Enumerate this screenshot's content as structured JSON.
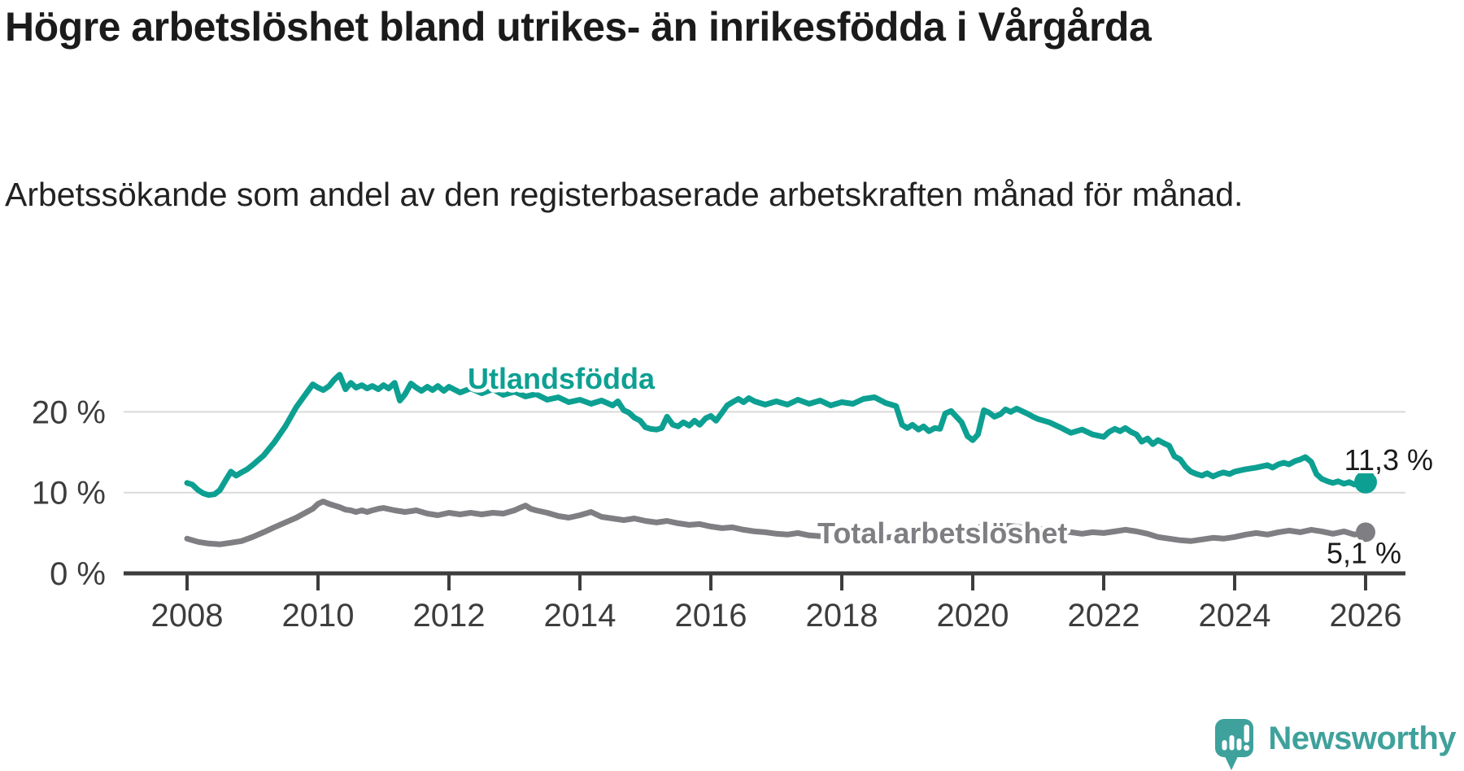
{
  "header": {
    "title": "Högre arbetslöshet bland utrikes- än inrikesfödda i Vårgårda",
    "subtitle": "Arbetssökande som andel av den registerbaserade arbetskraften månad för månad."
  },
  "chart_data": {
    "type": "line",
    "title": "Högre arbetslöshet bland utrikes- än inrikesfödda i Vårgårda",
    "subtitle": "Arbetssökande som andel av den registerbaserade arbetskraften månad för månad.",
    "xlabel": "",
    "ylabel": "",
    "xlim": [
      2007.0,
      2026.6
    ],
    "ylim": [
      0,
      27
    ],
    "grid": "horizontal",
    "legend_position": "inline-labels-on-lines",
    "x_ticks": [
      2008,
      2010,
      2012,
      2014,
      2016,
      2018,
      2020,
      2022,
      2024,
      2026
    ],
    "y_ticks": [
      {
        "value": 0,
        "label": "0 %"
      },
      {
        "value": 10,
        "label": "10 %"
      },
      {
        "value": 20,
        "label": "20 %"
      }
    ],
    "series": [
      {
        "name": "Utlandsfödda",
        "color": "#0da092",
        "end_label": "11,3 %",
        "end_value": 11.3,
        "points": [
          [
            2008.0,
            11.2
          ],
          [
            2008.08,
            11.0
          ],
          [
            2008.17,
            10.3
          ],
          [
            2008.25,
            9.9
          ],
          [
            2008.33,
            9.7
          ],
          [
            2008.42,
            9.8
          ],
          [
            2008.5,
            10.3
          ],
          [
            2008.58,
            11.4
          ],
          [
            2008.67,
            12.6
          ],
          [
            2008.75,
            12.1
          ],
          [
            2008.83,
            12.5
          ],
          [
            2008.92,
            12.9
          ],
          [
            2009.0,
            13.4
          ],
          [
            2009.17,
            14.6
          ],
          [
            2009.25,
            15.4
          ],
          [
            2009.33,
            16.2
          ],
          [
            2009.5,
            18.2
          ],
          [
            2009.67,
            20.6
          ],
          [
            2009.83,
            22.4
          ],
          [
            2009.92,
            23.4
          ],
          [
            2010.0,
            23.0
          ],
          [
            2010.08,
            22.7
          ],
          [
            2010.17,
            23.2
          ],
          [
            2010.25,
            24.0
          ],
          [
            2010.33,
            24.6
          ],
          [
            2010.42,
            22.8
          ],
          [
            2010.5,
            23.6
          ],
          [
            2010.58,
            23.0
          ],
          [
            2010.67,
            23.3
          ],
          [
            2010.75,
            22.9
          ],
          [
            2010.83,
            23.2
          ],
          [
            2010.92,
            22.8
          ],
          [
            2011.0,
            23.3
          ],
          [
            2011.08,
            22.9
          ],
          [
            2011.17,
            23.6
          ],
          [
            2011.25,
            21.4
          ],
          [
            2011.33,
            22.2
          ],
          [
            2011.42,
            23.5
          ],
          [
            2011.5,
            23.0
          ],
          [
            2011.58,
            22.6
          ],
          [
            2011.67,
            23.1
          ],
          [
            2011.75,
            22.7
          ],
          [
            2011.83,
            23.2
          ],
          [
            2011.92,
            22.6
          ],
          [
            2012.0,
            23.1
          ],
          [
            2012.17,
            22.4
          ],
          [
            2012.33,
            22.9
          ],
          [
            2012.5,
            22.3
          ],
          [
            2012.67,
            22.8
          ],
          [
            2012.83,
            22.1
          ],
          [
            2013.0,
            22.5
          ],
          [
            2013.17,
            21.9
          ],
          [
            2013.33,
            22.2
          ],
          [
            2013.5,
            21.5
          ],
          [
            2013.67,
            21.8
          ],
          [
            2013.83,
            21.2
          ],
          [
            2014.0,
            21.5
          ],
          [
            2014.17,
            21.0
          ],
          [
            2014.33,
            21.4
          ],
          [
            2014.5,
            20.8
          ],
          [
            2014.58,
            21.3
          ],
          [
            2014.67,
            20.2
          ],
          [
            2014.75,
            19.9
          ],
          [
            2014.83,
            19.3
          ],
          [
            2014.92,
            18.9
          ],
          [
            2015.0,
            18.1
          ],
          [
            2015.08,
            17.9
          ],
          [
            2015.17,
            17.8
          ],
          [
            2015.25,
            18.0
          ],
          [
            2015.33,
            19.4
          ],
          [
            2015.42,
            18.4
          ],
          [
            2015.5,
            18.2
          ],
          [
            2015.58,
            18.7
          ],
          [
            2015.67,
            18.3
          ],
          [
            2015.75,
            18.9
          ],
          [
            2015.83,
            18.4
          ],
          [
            2015.92,
            19.2
          ],
          [
            2016.0,
            19.5
          ],
          [
            2016.08,
            18.9
          ],
          [
            2016.17,
            19.9
          ],
          [
            2016.25,
            20.8
          ],
          [
            2016.33,
            21.2
          ],
          [
            2016.42,
            21.6
          ],
          [
            2016.5,
            21.2
          ],
          [
            2016.58,
            21.7
          ],
          [
            2016.67,
            21.3
          ],
          [
            2016.83,
            20.9
          ],
          [
            2017.0,
            21.3
          ],
          [
            2017.17,
            20.9
          ],
          [
            2017.33,
            21.5
          ],
          [
            2017.5,
            21.0
          ],
          [
            2017.67,
            21.4
          ],
          [
            2017.83,
            20.8
          ],
          [
            2018.0,
            21.2
          ],
          [
            2018.17,
            21.0
          ],
          [
            2018.33,
            21.6
          ],
          [
            2018.5,
            21.8
          ],
          [
            2018.67,
            21.1
          ],
          [
            2018.83,
            20.7
          ],
          [
            2018.92,
            18.4
          ],
          [
            2019.0,
            18.0
          ],
          [
            2019.08,
            18.4
          ],
          [
            2019.17,
            17.8
          ],
          [
            2019.25,
            18.2
          ],
          [
            2019.33,
            17.6
          ],
          [
            2019.42,
            18.0
          ],
          [
            2019.5,
            17.9
          ],
          [
            2019.58,
            19.8
          ],
          [
            2019.67,
            20.1
          ],
          [
            2019.75,
            19.4
          ],
          [
            2019.83,
            18.7
          ],
          [
            2019.92,
            17.0
          ],
          [
            2020.0,
            16.5
          ],
          [
            2020.08,
            17.2
          ],
          [
            2020.17,
            20.2
          ],
          [
            2020.25,
            19.9
          ],
          [
            2020.33,
            19.4
          ],
          [
            2020.42,
            19.7
          ],
          [
            2020.5,
            20.3
          ],
          [
            2020.58,
            20.0
          ],
          [
            2020.67,
            20.4
          ],
          [
            2020.75,
            20.1
          ],
          [
            2020.83,
            19.8
          ],
          [
            2020.92,
            19.4
          ],
          [
            2021.0,
            19.1
          ],
          [
            2021.17,
            18.7
          ],
          [
            2021.33,
            18.1
          ],
          [
            2021.5,
            17.4
          ],
          [
            2021.67,
            17.8
          ],
          [
            2021.83,
            17.2
          ],
          [
            2022.0,
            16.9
          ],
          [
            2022.08,
            17.5
          ],
          [
            2022.17,
            17.9
          ],
          [
            2022.25,
            17.6
          ],
          [
            2022.33,
            18.0
          ],
          [
            2022.42,
            17.5
          ],
          [
            2022.5,
            17.2
          ],
          [
            2022.58,
            16.3
          ],
          [
            2022.67,
            16.7
          ],
          [
            2022.75,
            16.0
          ],
          [
            2022.83,
            16.5
          ],
          [
            2022.92,
            16.1
          ],
          [
            2023.0,
            15.8
          ],
          [
            2023.08,
            14.5
          ],
          [
            2023.17,
            14.1
          ],
          [
            2023.25,
            13.2
          ],
          [
            2023.33,
            12.6
          ],
          [
            2023.42,
            12.3
          ],
          [
            2023.5,
            12.1
          ],
          [
            2023.58,
            12.4
          ],
          [
            2023.67,
            12.0
          ],
          [
            2023.75,
            12.3
          ],
          [
            2023.83,
            12.5
          ],
          [
            2023.92,
            12.3
          ],
          [
            2024.0,
            12.6
          ],
          [
            2024.17,
            12.9
          ],
          [
            2024.33,
            13.1
          ],
          [
            2024.5,
            13.4
          ],
          [
            2024.58,
            13.1
          ],
          [
            2024.67,
            13.5
          ],
          [
            2024.75,
            13.7
          ],
          [
            2024.83,
            13.5
          ],
          [
            2024.92,
            13.9
          ],
          [
            2025.0,
            14.1
          ],
          [
            2025.08,
            14.4
          ],
          [
            2025.17,
            13.8
          ],
          [
            2025.25,
            12.3
          ],
          [
            2025.33,
            11.7
          ],
          [
            2025.42,
            11.4
          ],
          [
            2025.5,
            11.2
          ],
          [
            2025.58,
            11.4
          ],
          [
            2025.67,
            11.1
          ],
          [
            2025.75,
            11.3
          ],
          [
            2025.83,
            11.0
          ],
          [
            2025.92,
            11.1
          ],
          [
            2026.0,
            11.3
          ]
        ]
      },
      {
        "name": "Total arbetslöshet",
        "color": "#7f7f83",
        "end_label": "5,1 %",
        "end_value": 5.1,
        "points": [
          [
            2008.0,
            4.3
          ],
          [
            2008.17,
            3.9
          ],
          [
            2008.33,
            3.7
          ],
          [
            2008.5,
            3.6
          ],
          [
            2008.67,
            3.8
          ],
          [
            2008.83,
            4.0
          ],
          [
            2009.0,
            4.5
          ],
          [
            2009.17,
            5.1
          ],
          [
            2009.33,
            5.7
          ],
          [
            2009.5,
            6.3
          ],
          [
            2009.67,
            6.9
          ],
          [
            2009.83,
            7.6
          ],
          [
            2009.92,
            8.0
          ],
          [
            2010.0,
            8.6
          ],
          [
            2010.08,
            8.9
          ],
          [
            2010.17,
            8.6
          ],
          [
            2010.25,
            8.4
          ],
          [
            2010.33,
            8.2
          ],
          [
            2010.42,
            7.9
          ],
          [
            2010.5,
            7.8
          ],
          [
            2010.58,
            7.6
          ],
          [
            2010.67,
            7.8
          ],
          [
            2010.75,
            7.6
          ],
          [
            2010.83,
            7.8
          ],
          [
            2010.92,
            8.0
          ],
          [
            2011.0,
            8.1
          ],
          [
            2011.17,
            7.8
          ],
          [
            2011.33,
            7.6
          ],
          [
            2011.5,
            7.8
          ],
          [
            2011.67,
            7.4
          ],
          [
            2011.83,
            7.2
          ],
          [
            2012.0,
            7.5
          ],
          [
            2012.17,
            7.3
          ],
          [
            2012.33,
            7.5
          ],
          [
            2012.5,
            7.3
          ],
          [
            2012.67,
            7.5
          ],
          [
            2012.83,
            7.4
          ],
          [
            2013.0,
            7.8
          ],
          [
            2013.08,
            8.1
          ],
          [
            2013.17,
            8.4
          ],
          [
            2013.25,
            8.0
          ],
          [
            2013.33,
            7.8
          ],
          [
            2013.5,
            7.5
          ],
          [
            2013.67,
            7.1
          ],
          [
            2013.83,
            6.9
          ],
          [
            2014.0,
            7.2
          ],
          [
            2014.17,
            7.6
          ],
          [
            2014.25,
            7.3
          ],
          [
            2014.33,
            7.0
          ],
          [
            2014.5,
            6.8
          ],
          [
            2014.67,
            6.6
          ],
          [
            2014.83,
            6.8
          ],
          [
            2015.0,
            6.5
          ],
          [
            2015.17,
            6.3
          ],
          [
            2015.33,
            6.5
          ],
          [
            2015.5,
            6.2
          ],
          [
            2015.67,
            6.0
          ],
          [
            2015.83,
            6.1
          ],
          [
            2016.0,
            5.8
          ],
          [
            2016.17,
            5.6
          ],
          [
            2016.33,
            5.7
          ],
          [
            2016.5,
            5.4
          ],
          [
            2016.67,
            5.2
          ],
          [
            2016.83,
            5.1
          ],
          [
            2017.0,
            4.9
          ],
          [
            2017.17,
            4.8
          ],
          [
            2017.33,
            5.0
          ],
          [
            2017.5,
            4.7
          ],
          [
            2017.67,
            4.6
          ],
          [
            2017.83,
            4.8
          ],
          [
            2018.0,
            4.6
          ],
          [
            2018.17,
            4.5
          ],
          [
            2018.33,
            4.7
          ],
          [
            2018.5,
            4.5
          ],
          [
            2018.67,
            4.4
          ],
          [
            2018.83,
            4.6
          ],
          [
            2019.0,
            4.7
          ],
          [
            2019.17,
            4.6
          ],
          [
            2019.33,
            4.8
          ],
          [
            2019.5,
            4.9
          ],
          [
            2019.67,
            4.8
          ],
          [
            2019.83,
            5.0
          ],
          [
            2020.0,
            5.3
          ],
          [
            2020.17,
            6.0
          ],
          [
            2020.33,
            6.2
          ],
          [
            2020.5,
            5.9
          ],
          [
            2020.67,
            5.8
          ],
          [
            2020.83,
            5.6
          ],
          [
            2021.0,
            5.5
          ],
          [
            2021.17,
            5.3
          ],
          [
            2021.33,
            5.2
          ],
          [
            2021.5,
            5.1
          ],
          [
            2021.67,
            4.9
          ],
          [
            2021.83,
            5.1
          ],
          [
            2022.0,
            5.0
          ],
          [
            2022.17,
            5.2
          ],
          [
            2022.33,
            5.4
          ],
          [
            2022.5,
            5.2
          ],
          [
            2022.67,
            4.9
          ],
          [
            2022.83,
            4.5
          ],
          [
            2023.0,
            4.3
          ],
          [
            2023.17,
            4.1
          ],
          [
            2023.33,
            4.0
          ],
          [
            2023.5,
            4.2
          ],
          [
            2023.67,
            4.4
          ],
          [
            2023.83,
            4.3
          ],
          [
            2024.0,
            4.5
          ],
          [
            2024.17,
            4.8
          ],
          [
            2024.33,
            5.0
          ],
          [
            2024.5,
            4.8
          ],
          [
            2024.67,
            5.1
          ],
          [
            2024.83,
            5.3
          ],
          [
            2025.0,
            5.1
          ],
          [
            2025.17,
            5.4
          ],
          [
            2025.33,
            5.2
          ],
          [
            2025.5,
            4.9
          ],
          [
            2025.67,
            5.2
          ],
          [
            2025.83,
            4.8
          ],
          [
            2026.0,
            5.1
          ]
        ]
      }
    ]
  },
  "footer": {
    "brand": "Newsworthy",
    "logo_icon": "newsworthy-speech-bubble-chart-icon",
    "brand_color": "#3fa19b"
  }
}
